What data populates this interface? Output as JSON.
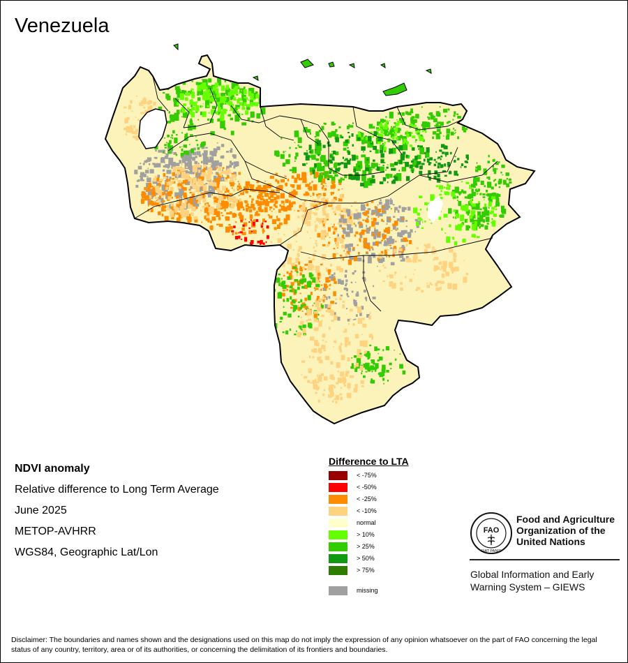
{
  "title": "Venezuela",
  "info": {
    "product": "NDVI anomaly",
    "description": "Relative difference to Long Term Average",
    "period": "June 2025",
    "sensor": "METOP-AVHRR",
    "projection": "WGS84, Geographic Lat/Lon"
  },
  "legend": {
    "title": "Difference to LTA",
    "items": [
      {
        "label": "< -75%",
        "color": "#990000"
      },
      {
        "label": "< -50%",
        "color": "#ff0000"
      },
      {
        "label": "< -25%",
        "color": "#ff8c00"
      },
      {
        "label": "< -10%",
        "color": "#ffd27f"
      },
      {
        "label": "normal",
        "color": "#ffffcc"
      },
      {
        "label": "> 10%",
        "color": "#66ff00"
      },
      {
        "label": "> 25%",
        "color": "#33cc00"
      },
      {
        "label": "> 50%",
        "color": "#119911"
      },
      {
        "label": "> 75%",
        "color": "#2e7d00"
      }
    ],
    "missing": {
      "label": "missing",
      "color": "#a0a0a0"
    }
  },
  "org": {
    "name_line1": "Food and Agriculture",
    "name_line2": "Organization of the",
    "name_line3": "United Nations",
    "logo_letters": "FAO",
    "logo_motto": "FIAT PANIS",
    "system_line1": "Global Information and Early",
    "system_line2": "Warning System – GIEWS"
  },
  "disclaimer": "Disclaimer: The boundaries and names shown and the designations used on this map do not imply the expression of any opinion whatsoever on the part of FAO concerning the legal status of any country, territory, area or of its authorities, or concerning the delimitation of its frontiers and boundaries.",
  "map": {
    "lake": "Lake Maracaibo",
    "dominant_class": "normal",
    "colors": {
      "border": "#000000",
      "lake": "#ffffff",
      "base": "#fbf3b9"
    }
  }
}
